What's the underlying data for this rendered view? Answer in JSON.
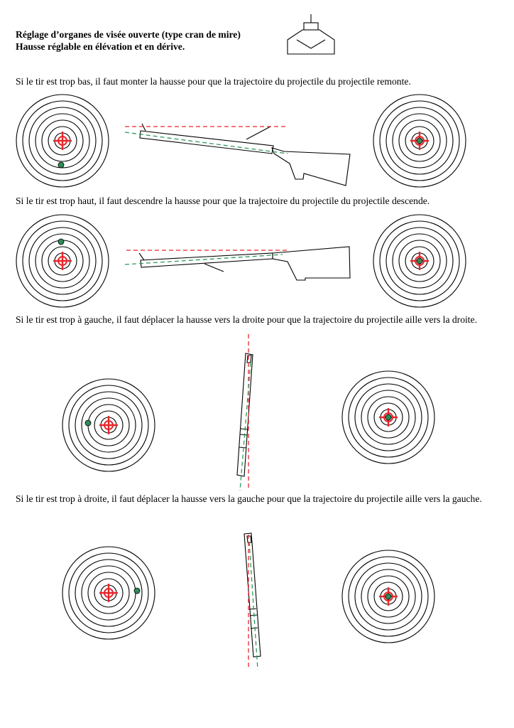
{
  "header": {
    "title_line1": "Réglage d’organes de visée ouverte (type cran de mire)",
    "title_line2": "Hausse réglable en élévation et en dérive."
  },
  "sections": [
    {
      "id": "too-low",
      "text": "Si le tir est trop bas, il faut monter la hausse pour que la trajectoire du projectile du projectile remonte."
    },
    {
      "id": "too-high",
      "text": "Si le tir est trop haut, il faut descendre la hausse pour que la trajectoire du projectile du projectile descende."
    },
    {
      "id": "too-left",
      "text": "Si le tir est trop à gauche, il faut déplacer la hausse vers la droite pour que la trajectoire du projectile aille vers la droite."
    },
    {
      "id": "too-right",
      "text": "Si le tir est trop à droite, il faut déplacer la hausse vers la gauche pour que la trajectoire du projectile aille vers la gauche."
    }
  ],
  "colors": {
    "line_of_sight": "#e8262b",
    "trajectory": "#2e9a5c",
    "impact": "#2e8b57",
    "aim_cross": "#e8262b",
    "ring": "#000000"
  },
  "icons": [
    "rear-sight-notch-icon",
    "rifle-icon",
    "target-icon",
    "crosshair-icon",
    "impact-dot-icon"
  ]
}
